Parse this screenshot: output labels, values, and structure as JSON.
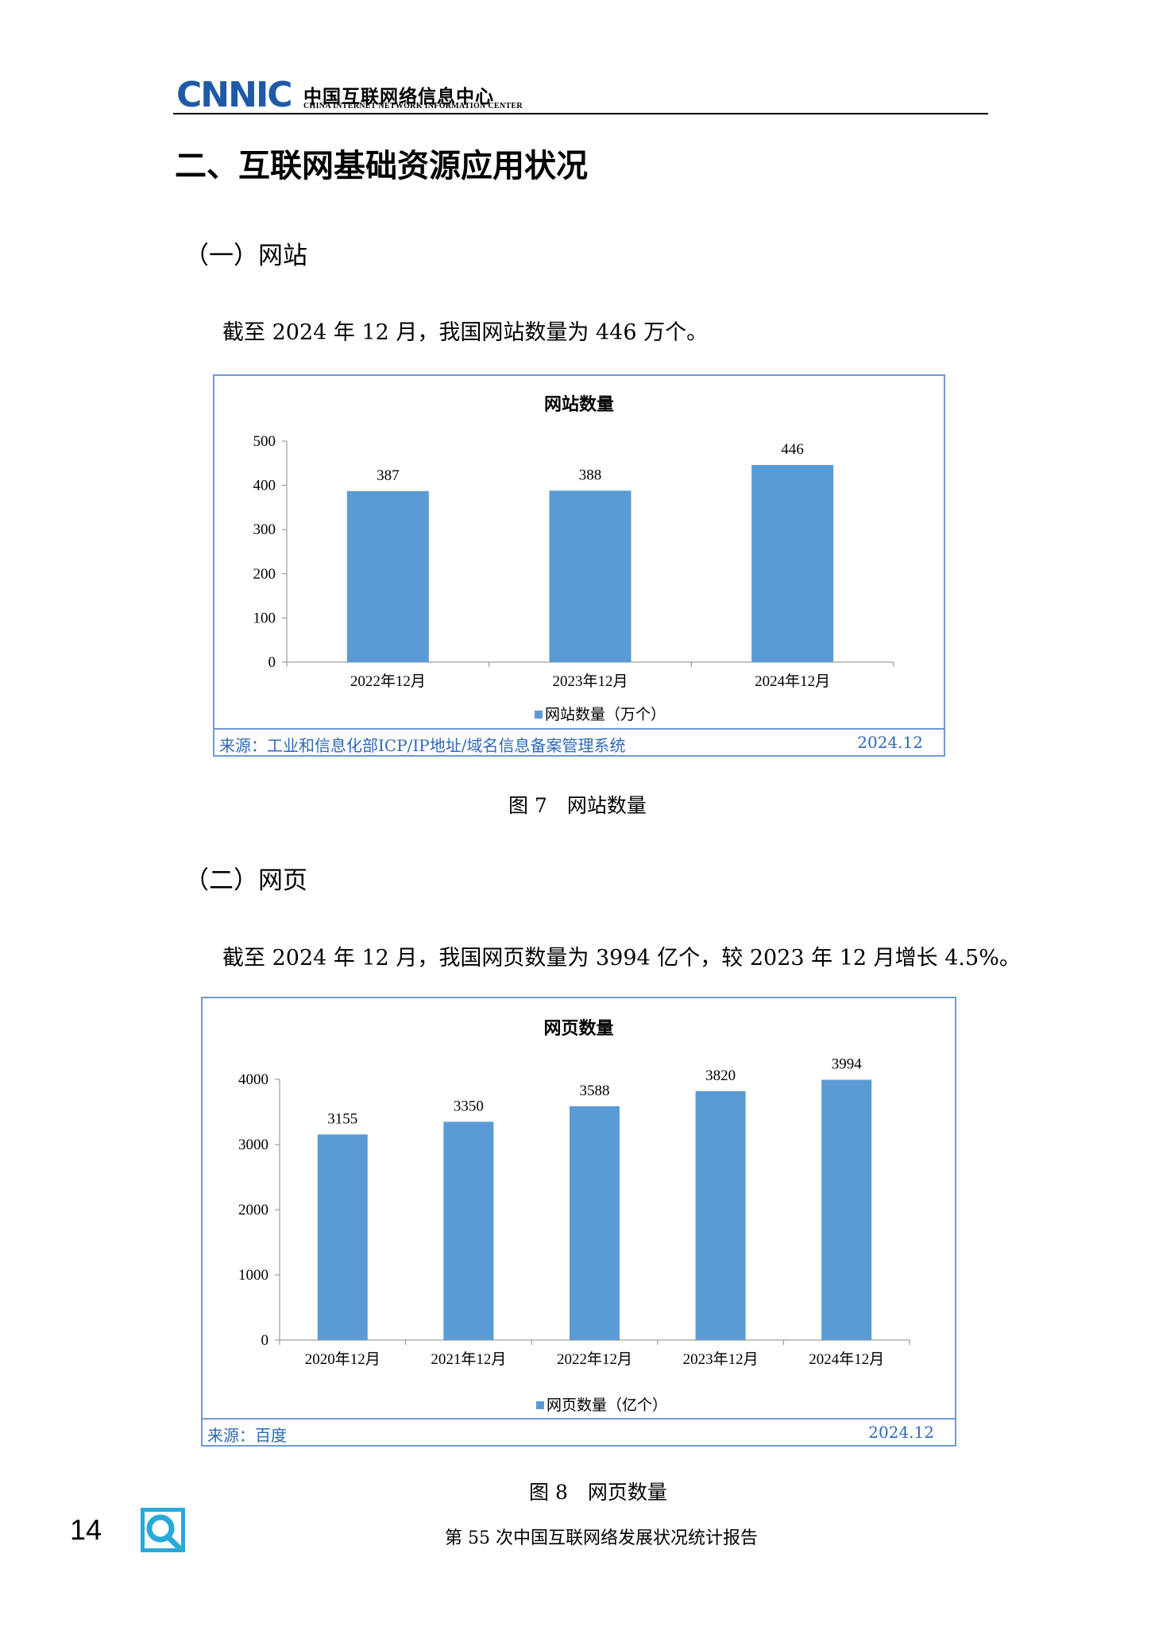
{
  "header": {
    "logo_text": "CNNIC",
    "org_name_cn": "中国互联网络信息中心",
    "org_name_en": "CHINA INTERNET NETWORK INFORMATION CENTER"
  },
  "section": {
    "title": "二、互联网基础资源应用状况"
  },
  "websites": {
    "heading": "（一）网站",
    "paragraph": "截至 2024 年 12 月，我国网站数量为 446 万个。",
    "caption": "图 7　网站数量",
    "source": "来源：工业和信息化部ICP/IP地址/域名信息备案管理系统",
    "date": "2024.12"
  },
  "webpages": {
    "heading": "（二）网页",
    "paragraph": "截至 2024 年 12 月，我国网页数量为 3994 亿个，较 2023 年 12 月增长 4.5%。",
    "caption": "图 8　网页数量",
    "source": "来源：百度",
    "date": "2024.12"
  },
  "footer": {
    "page_number": "14",
    "report_title": "第 55 次中国互联网络发展状况统计报告"
  },
  "colors": {
    "bar": "#5b9bd5",
    "frame": "#6f9bd1",
    "source_text": "#2e69b8",
    "logo_blue": "#1f5aa6"
  },
  "chart_data": [
    {
      "type": "bar",
      "title": "网站数量",
      "categories": [
        "2022年12月",
        "2023年12月",
        "2024年12月"
      ],
      "series": [
        {
          "name": "网站数量（万个）",
          "values": [
            387,
            388,
            446
          ]
        }
      ],
      "ylim": [
        0,
        500
      ],
      "yticks": [
        0,
        100,
        200,
        300,
        400,
        500
      ],
      "legend": "bottom",
      "grid": false
    },
    {
      "type": "bar",
      "title": "网页数量",
      "categories": [
        "2020年12月",
        "2021年12月",
        "2022年12月",
        "2023年12月",
        "2024年12月"
      ],
      "series": [
        {
          "name": "网页数量（亿个）",
          "values": [
            3155,
            3350,
            3588,
            3820,
            3994
          ]
        }
      ],
      "ylim": [
        0,
        4000
      ],
      "yticks": [
        0,
        1000,
        2000,
        3000,
        4000
      ],
      "legend": "bottom",
      "grid": false
    }
  ]
}
